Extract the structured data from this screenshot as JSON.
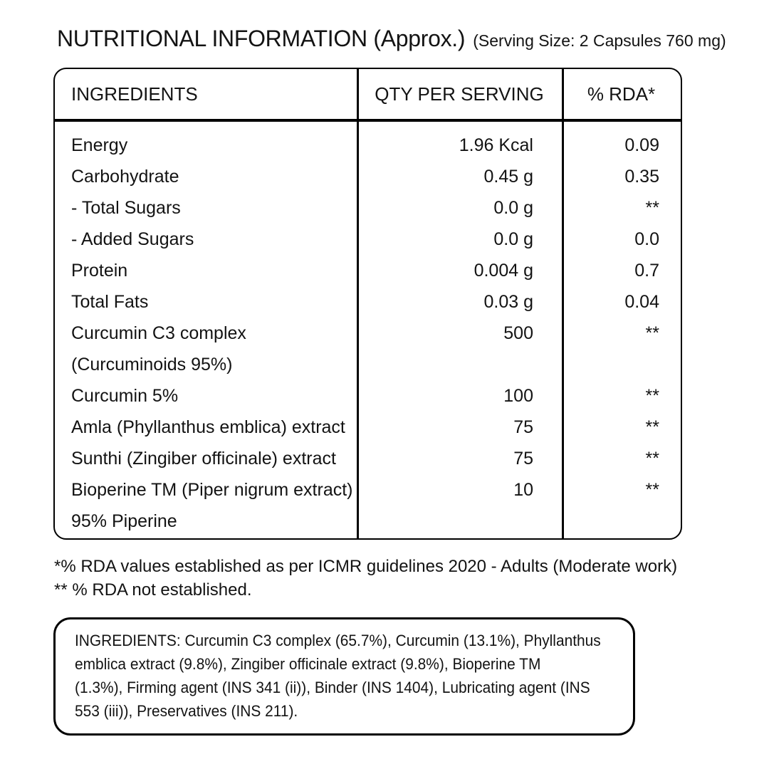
{
  "page": {
    "background_color": "#ffffff",
    "text_color": "#131313",
    "border_color": "#000000"
  },
  "title": {
    "main": "NUTRITIONAL INFORMATION (Approx.)",
    "serving": "(Serving Size: 2 Capsules 760 mg)"
  },
  "table": {
    "headers": {
      "ingredients": "INGREDIENTS",
      "qty": "QTY PER SERVING",
      "rda": "% RDA*"
    },
    "rows": [
      {
        "lines": [
          "Energy"
        ],
        "qty": "1.96 Kcal",
        "rda": "0.09"
      },
      {
        "lines": [
          "Carbohydrate"
        ],
        "qty": "0.45 g",
        "rda": "0.35"
      },
      {
        "lines": [
          "- Total Sugars"
        ],
        "qty": "0.0 g",
        "rda": "**"
      },
      {
        "lines": [
          "- Added Sugars"
        ],
        "qty": "0.0 g",
        "rda": "0.0"
      },
      {
        "lines": [
          "Protein"
        ],
        "qty": "0.004 g",
        "rda": "0.7"
      },
      {
        "lines": [
          "Total Fats"
        ],
        "qty": "0.03 g",
        "rda": "0.04"
      },
      {
        "lines": [
          "Curcumin C3 complex",
          "(Curcuminoids 95%)"
        ],
        "qty": "500",
        "rda": "**"
      },
      {
        "lines": [
          "Curcumin 5%"
        ],
        "qty": "100",
        "rda": "**"
      },
      {
        "lines": [
          "Amla (Phyllanthus emblica) extract"
        ],
        "qty": "75",
        "rda": "**"
      },
      {
        "lines": [
          "Sunthi (Zingiber officinale) extract"
        ],
        "qty": "75",
        "rda": "**"
      },
      {
        "lines": [
          "Bioperine TM (Piper nigrum extract)",
          "95% Piperine"
        ],
        "qty": "10",
        "rda": "**"
      }
    ]
  },
  "footnotes": {
    "line1": "*% RDA values established as per ICMR guidelines 2020 - Adults (Moderate work)",
    "line2": "** % RDA not established."
  },
  "ingredients_box": {
    "lines": [
      "INGREDIENTS: Curcumin C3 complex (65.7%), Curcumin (13.1%), Phyllanthus",
      "emblica extract (9.8%), Zingiber officinale extract (9.8%), Bioperine TM",
      "(1.3%), Firming agent (INS 341 (ii)), Binder (INS 1404), Lubricating agent (INS",
      "553 (iii)), Preservatives (INS 211)."
    ],
    "full_text": "INGREDIENTS: Curcumin C3 complex (65.7%), Curcumin (13.1%), Phyllanthus emblica extract (9.8%), Zingiber officinale extract (9.8%), Bioperine TM (1.3%), Firming agent (INS 341 (ii)), Binder (INS 1404), Lubricating agent (INS 553 (iii)), Preservatives (INS 211)."
  }
}
